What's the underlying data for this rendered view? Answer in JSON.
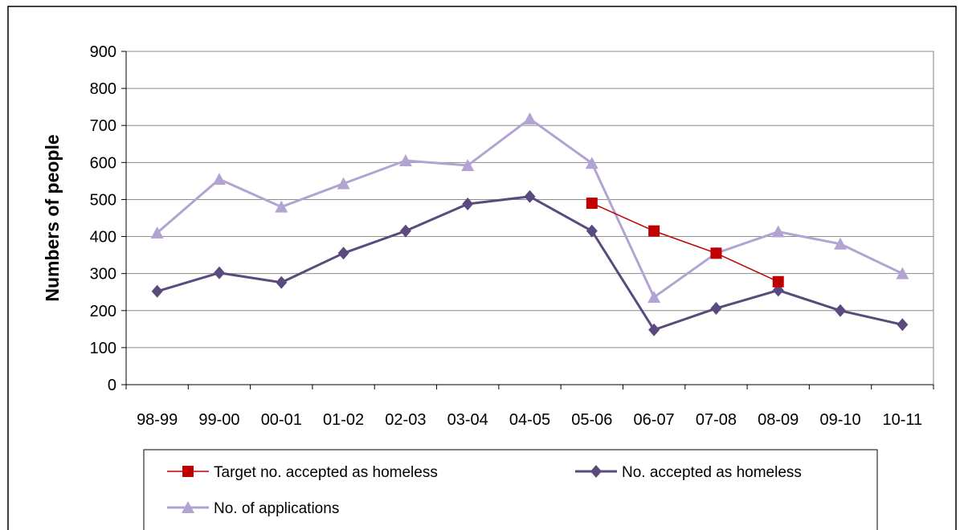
{
  "chart_data": {
    "type": "line",
    "title": "",
    "xlabel": "",
    "ylabel": "Numbers of people",
    "ylim": [
      0,
      900
    ],
    "yticks": [
      0,
      100,
      200,
      300,
      400,
      500,
      600,
      700,
      800,
      900
    ],
    "grid": true,
    "legend_position": "bottom",
    "categories": [
      "98-99",
      "99-00",
      "00-01",
      "01-02",
      "02-03",
      "03-04",
      "04-05",
      "05-06",
      "06-07",
      "07-08",
      "08-09",
      "09-10",
      "10-11"
    ],
    "series": [
      {
        "name": "Target no. accepted as homeless",
        "color": "#C00000",
        "marker": "square",
        "values": [
          null,
          null,
          null,
          null,
          null,
          null,
          null,
          490,
          415,
          355,
          278,
          null,
          null
        ]
      },
      {
        "name": "No. accepted as homeless",
        "color": "#5A4A7E",
        "marker": "diamond",
        "values": [
          252,
          302,
          276,
          355,
          415,
          488,
          508,
          415,
          148,
          206,
          255,
          200,
          162
        ]
      },
      {
        "name": "No. of applications",
        "color": "#B3A3D3",
        "marker": "triangle",
        "values": [
          410,
          555,
          480,
          543,
          605,
          592,
          718,
          598,
          236,
          355,
          413,
          380,
          300
        ]
      }
    ]
  }
}
